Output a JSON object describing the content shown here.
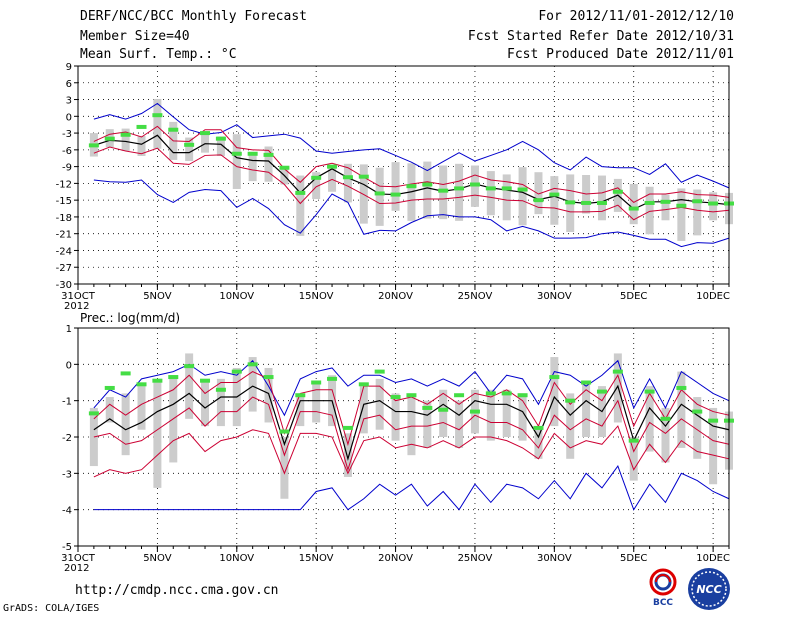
{
  "header": {
    "title": "DERF/NCC/BCC Monthly Forecast",
    "member_size": "Member Size=40",
    "variable": "Mean Surf. Temp.: °C",
    "forecast_period": "For 2012/11/01-2012/12/10",
    "started_date": "Fcst Started Refer Date 2012/10/31",
    "produced_date": "Fcst Produced Date 2012/11/01"
  },
  "footer": {
    "url": "http://cmdp.ncc.cma.gov.cn",
    "grads_credit": "GrADS: COLA/IGES",
    "logo_bcc": "BCC",
    "logo_ncc": "NCC"
  },
  "colors": {
    "envelope": "#0000cc",
    "spread": "#cc0033",
    "mean": "#000000",
    "box": "#cccccc",
    "marker": "#44dd44"
  },
  "chart_data": [
    {
      "type": "line",
      "name": "temperature",
      "ylabel": "Mean Surf. Temp.: °C",
      "ylim": [
        -30,
        9
      ],
      "yticks": [
        9,
        6,
        3,
        0,
        -3,
        -6,
        -9,
        -12,
        -15,
        -18,
        -21,
        -24,
        -27,
        -30
      ],
      "ytick_labels": [
        "9",
        "6",
        "3",
        "0",
        "-3",
        "-6",
        "-9",
        "-12",
        "-15",
        "-18",
        "-21",
        "-24",
        "-27",
        "-30"
      ],
      "xlim": [
        0,
        41
      ],
      "x_ticks": [
        0,
        5,
        10,
        15,
        20,
        25,
        30,
        35,
        40
      ],
      "x_tick_labels": [
        "31OCT",
        "5NOV",
        "10NOV",
        "15NOV",
        "20NOV",
        "25NOV",
        "30NOV",
        "5DEC",
        "10DEC"
      ],
      "x_year_label": "2012",
      "grid": true,
      "series": [
        {
          "name": "max",
          "color": "#0000cc",
          "values": [
            -0.5,
            0.3,
            -0.5,
            0.5,
            2.3,
            -0.1,
            -2.4,
            -3.2,
            -2.9,
            -1.5,
            -3.8,
            -3.5,
            -3.2,
            -3.9,
            -6.2,
            -6.6,
            -6.3,
            -6.0,
            -5.8,
            -7.0,
            -8.2,
            -9.7,
            -8.1,
            -6.5,
            -8.0,
            -7.0,
            -6.0,
            -4.5,
            -6.0,
            -8.3,
            -9.6,
            -7.3,
            -9.0,
            -9.2,
            -9.2,
            -10.4,
            -8.5,
            -11.8,
            -10.5,
            -11.6,
            -12.8
          ]
        },
        {
          "name": "spread_upper",
          "color": "#cc0033",
          "values": [
            -4.5,
            -3.2,
            -2.8,
            -3.7,
            -1.8,
            -4.4,
            -4.5,
            -2.4,
            -2.4,
            -5.6,
            -6.0,
            -6.1,
            -9.4,
            -11.8,
            -9.0,
            -8.4,
            -9.2,
            -10.9,
            -12.5,
            -12.6,
            -12.1,
            -11.7,
            -12.2,
            -11.6,
            -10.5,
            -11.4,
            -11.7,
            -12.2,
            -13.9,
            -12.9,
            -13.3,
            -13.9,
            -13.7,
            -12.8,
            -15.4,
            -13.9,
            -13.9,
            -13.5,
            -14.0,
            -14.1,
            -14.5
          ]
        },
        {
          "name": "mean",
          "color": "#000000",
          "values": [
            -5.2,
            -4.3,
            -4.5,
            -5.0,
            -3.4,
            -6.5,
            -6.5,
            -4.9,
            -5.0,
            -7.4,
            -7.9,
            -8.0,
            -10.6,
            -13.7,
            -11.0,
            -9.4,
            -11.0,
            -12.2,
            -13.9,
            -14.0,
            -13.5,
            -12.8,
            -13.4,
            -13.0,
            -12.1,
            -12.8,
            -13.2,
            -13.6,
            -14.9,
            -14.3,
            -15.3,
            -15.6,
            -15.3,
            -14.1,
            -16.6,
            -15.3,
            -15.3,
            -14.9,
            -15.3,
            -15.5,
            -15.8
          ]
        },
        {
          "name": "spread_lower",
          "color": "#cc0033",
          "values": [
            -6.6,
            -5.5,
            -6.2,
            -6.7,
            -5.7,
            -8.4,
            -8.6,
            -7.0,
            -6.9,
            -9.0,
            -9.6,
            -10.0,
            -12.2,
            -15.6,
            -12.6,
            -11.3,
            -12.5,
            -14.0,
            -15.6,
            -15.5,
            -15.0,
            -14.8,
            -14.8,
            -14.5,
            -14.1,
            -14.5,
            -15.0,
            -15.1,
            -16.3,
            -16.4,
            -17.1,
            -17.1,
            -17.0,
            -15.9,
            -18.5,
            -17.0,
            -16.7,
            -16.3,
            -16.8,
            -17.1,
            -16.8
          ]
        },
        {
          "name": "min",
          "color": "#0000cc",
          "values": [
            -11.4,
            -11.7,
            -11.8,
            -11.4,
            -14.0,
            -15.4,
            -13.6,
            -13.1,
            -13.3,
            -16.3,
            -14.7,
            -16.5,
            -19.4,
            -20.9,
            -17.6,
            -13.9,
            -15.4,
            -21.1,
            -20.4,
            -20.5,
            -19.0,
            -17.8,
            -17.6,
            -18.0,
            -18.0,
            -18.5,
            -20.5,
            -19.7,
            -20.5,
            -21.8,
            -21.8,
            -21.7,
            -21.0,
            -20.7,
            -21.3,
            -22.0,
            -22.0,
            -23.3,
            -22.6,
            -22.7,
            -21.8
          ]
        }
      ],
      "boxes": {
        "low": [
          -7.2,
          -5.5,
          -6.2,
          -7.1,
          -5.8,
          -7.8,
          -8.0,
          -6.5,
          -7.1,
          -13.0,
          -11.6,
          -11.7,
          -12.2,
          -21.4,
          -14.8,
          -13.5,
          -15.4,
          -19.2,
          -19.6,
          -16.9,
          -18.7,
          -18.3,
          -18.4,
          -18.7,
          -16.2,
          -17.7,
          -18.6,
          -19.5,
          -17.5,
          -19.4,
          -20.7,
          -17.4,
          -18.6,
          -17.1,
          -19.3,
          -21.1,
          -18.6,
          -22.3,
          -21.3,
          -18.6,
          -19.3
        ],
        "high": [
          -3.0,
          -2.3,
          -2.2,
          -3.5,
          3.1,
          -1.0,
          -3.8,
          -3.2,
          -3.6,
          -3.2,
          -6.7,
          -5.4,
          -9.3,
          -10.6,
          -10.0,
          -8.8,
          -8.5,
          -8.6,
          -9.2,
          -8.2,
          -8.4,
          -8.1,
          -8.8,
          -8.5,
          -8.8,
          -9.8,
          -10.4,
          -9.1,
          -10.0,
          -10.7,
          -10.4,
          -10.5,
          -10.6,
          -11.2,
          -12.1,
          -12.6,
          -14.0,
          -12.9,
          -13.1,
          -13.6,
          -13.7
        ]
      },
      "markers": [
        -5.2,
        -4.0,
        -3.3,
        -1.9,
        0.2,
        -2.4,
        -5.1,
        -3.0,
        -4.0,
        -6.7,
        -6.7,
        -6.9,
        -9.2,
        -13.7,
        -11.0,
        -9.0,
        -10.9,
        -10.8,
        -13.8,
        -14.0,
        -12.5,
        -12.2,
        -13.3,
        -12.9,
        -12.2,
        -12.9,
        -12.9,
        -13.1,
        -15.0,
        -14.0,
        -15.4,
        -15.5,
        -15.5,
        -13.5,
        -16.5,
        -15.5,
        -15.3,
        -16.0,
        -15.2,
        -15.6,
        -15.6
      ]
    },
    {
      "type": "line",
      "name": "precipitation",
      "ylabel": "Prec.: log(mm/d)",
      "ylim": [
        -5,
        1
      ],
      "yticks": [
        1,
        0,
        -1,
        -2,
        -3,
        -4,
        -5
      ],
      "ytick_labels": [
        "1",
        "0",
        "-1",
        "-2",
        "-3",
        "-4",
        "-5"
      ],
      "xlim": [
        0,
        41
      ],
      "x_ticks": [
        0,
        5,
        10,
        15,
        20,
        25,
        30,
        35,
        40
      ],
      "x_tick_labels": [
        "31OCT",
        "5NOV",
        "10NOV",
        "15NOV",
        "20NOV",
        "25NOV",
        "30NOV",
        "5DEC",
        "10DEC"
      ],
      "x_year_label": "2012",
      "grid": true,
      "series": [
        {
          "name": "max",
          "color": "#0000cc",
          "values": [
            -1.2,
            -0.7,
            -0.9,
            -0.4,
            -0.3,
            -0.2,
            0.0,
            -0.3,
            -0.2,
            -0.3,
            0.1,
            -0.6,
            -1.4,
            -0.4,
            -0.2,
            -0.1,
            -0.6,
            -0.3,
            -0.3,
            -0.5,
            -0.4,
            -0.6,
            -0.4,
            -0.6,
            -0.2,
            -0.8,
            -0.3,
            -0.4,
            -1.1,
            -0.2,
            -0.3,
            -0.6,
            -0.3,
            0.1,
            -1.2,
            -0.4,
            -1.2,
            -0.2,
            -0.5,
            -0.8,
            -1.0
          ]
        },
        {
          "name": "spread_upper",
          "color": "#cc0033",
          "values": [
            -1.5,
            -1.1,
            -1.4,
            -1.1,
            -0.9,
            -0.7,
            -0.3,
            -0.8,
            -0.5,
            -0.5,
            -0.2,
            -0.4,
            -1.9,
            -0.8,
            -0.7,
            -0.7,
            -2.2,
            -0.6,
            -0.6,
            -1.0,
            -0.9,
            -1.1,
            -0.8,
            -1.1,
            -0.8,
            -0.9,
            -0.7,
            -1.0,
            -1.7,
            -0.5,
            -1.1,
            -0.7,
            -1.0,
            -0.3,
            -1.7,
            -0.8,
            -1.5,
            -0.7,
            -1.1,
            -1.3,
            -1.4
          ]
        },
        {
          "name": "mean",
          "color": "#000000",
          "values": [
            -1.8,
            -1.5,
            -1.8,
            -1.6,
            -1.3,
            -1.1,
            -0.8,
            -1.2,
            -0.9,
            -0.9,
            -0.6,
            -0.8,
            -2.2,
            -1.0,
            -1.0,
            -1.0,
            -2.6,
            -1.1,
            -1.0,
            -1.3,
            -1.3,
            -1.4,
            -1.1,
            -1.4,
            -1.0,
            -1.1,
            -1.1,
            -1.3,
            -2.0,
            -0.9,
            -1.4,
            -1.0,
            -1.3,
            -0.6,
            -2.1,
            -1.2,
            -1.7,
            -1.1,
            -1.4,
            -1.7,
            -1.8
          ]
        },
        {
          "name": "spread_lower",
          "color": "#cc0033",
          "values": [
            -2.0,
            -1.9,
            -2.2,
            -2.1,
            -1.8,
            -1.5,
            -1.2,
            -1.7,
            -1.3,
            -1.3,
            -0.9,
            -1.1,
            -2.5,
            -1.3,
            -1.3,
            -1.4,
            -2.9,
            -1.5,
            -1.4,
            -1.8,
            -1.7,
            -1.7,
            -1.6,
            -1.8,
            -1.4,
            -1.6,
            -1.6,
            -1.8,
            -2.3,
            -1.4,
            -1.8,
            -1.5,
            -1.7,
            -1.0,
            -2.4,
            -1.6,
            -1.9,
            -1.5,
            -1.8,
            -2.1,
            -2.2
          ]
        },
        {
          "name": "spread_lower_2",
          "color": "#cc0033",
          "values": [
            -3.1,
            -2.9,
            -3.0,
            -2.9,
            -2.5,
            -2.1,
            -1.9,
            -2.4,
            -2.1,
            -2.0,
            -1.8,
            -1.9,
            -3.0,
            -1.9,
            -1.9,
            -2.0,
            -3.0,
            -2.1,
            -2.0,
            -2.3,
            -2.2,
            -2.3,
            -2.1,
            -2.3,
            -2.0,
            -2.0,
            -2.1,
            -2.3,
            -2.6,
            -1.9,
            -2.3,
            -2.1,
            -2.2,
            -1.7,
            -2.9,
            -2.2,
            -2.7,
            -2.1,
            -2.4,
            -2.5,
            -2.6
          ]
        },
        {
          "name": "min",
          "color": "#0000cc",
          "values": [
            -4.0,
            -4.0,
            -4.0,
            -4.0,
            -4.0,
            -4.0,
            -4.0,
            -4.0,
            -4.0,
            -4.0,
            -4.0,
            -4.0,
            -4.0,
            -4.0,
            -3.5,
            -3.4,
            -4.0,
            -3.7,
            -3.3,
            -3.6,
            -3.3,
            -3.9,
            -3.5,
            -4.0,
            -3.3,
            -3.8,
            -3.3,
            -3.4,
            -3.7,
            -3.2,
            -3.7,
            -3.0,
            -3.4,
            -2.8,
            -4.0,
            -3.3,
            -3.8,
            -3.0,
            -3.2,
            -3.5,
            -3.7
          ]
        },
        {
          "name": "max_upper_2",
          "color": "#0000cc",
          "values": null
        }
      ],
      "boxes": {
        "low": [
          -2.8,
          -1.6,
          -2.5,
          -1.8,
          -3.4,
          -2.7,
          -1.5,
          -1.7,
          -1.7,
          -1.7,
          -1.3,
          -1.6,
          -3.7,
          -1.7,
          -1.6,
          -1.7,
          -3.1,
          -1.9,
          -1.8,
          -2.1,
          -2.5,
          -2.3,
          -2.0,
          -2.3,
          -1.9,
          -2.1,
          -2.0,
          -2.1,
          -2.6,
          -1.7,
          -2.6,
          -2.0,
          -2.0,
          -1.6,
          -3.2,
          -2.4,
          -2.7,
          -2.3,
          -2.6,
          -3.3,
          -2.9
        ],
        "high": [
          -1.2,
          -0.9,
          -0.8,
          -0.6,
          -0.4,
          -0.3,
          0.3,
          -0.5,
          -0.4,
          -0.1,
          0.2,
          -0.1,
          -2.0,
          -0.9,
          -0.5,
          -0.3,
          -1.9,
          -0.6,
          -0.4,
          -0.8,
          -0.8,
          -1.0,
          -0.7,
          -1.0,
          -0.7,
          -0.7,
          -0.7,
          -0.8,
          -1.7,
          0.2,
          -0.8,
          -0.5,
          -0.6,
          0.3,
          -2.0,
          -0.6,
          -1.2,
          -0.2,
          -0.9,
          -1.2,
          -1.3
        ]
      },
      "markers": [
        -1.35,
        -0.65,
        -0.25,
        -0.55,
        -0.45,
        -0.35,
        -0.05,
        -0.45,
        -0.7,
        -0.2,
        0.0,
        -0.35,
        -1.85,
        -0.85,
        -0.5,
        -0.4,
        -1.75,
        -0.55,
        -0.2,
        -0.9,
        -0.85,
        -1.2,
        -1.25,
        -0.85,
        -1.3,
        -0.8,
        -0.8,
        -0.85,
        -1.75,
        -0.35,
        -1.0,
        -0.5,
        -0.75,
        -0.2,
        -2.1,
        -0.75,
        -1.5,
        -0.65,
        -1.3,
        -1.55,
        -1.55
      ]
    }
  ]
}
